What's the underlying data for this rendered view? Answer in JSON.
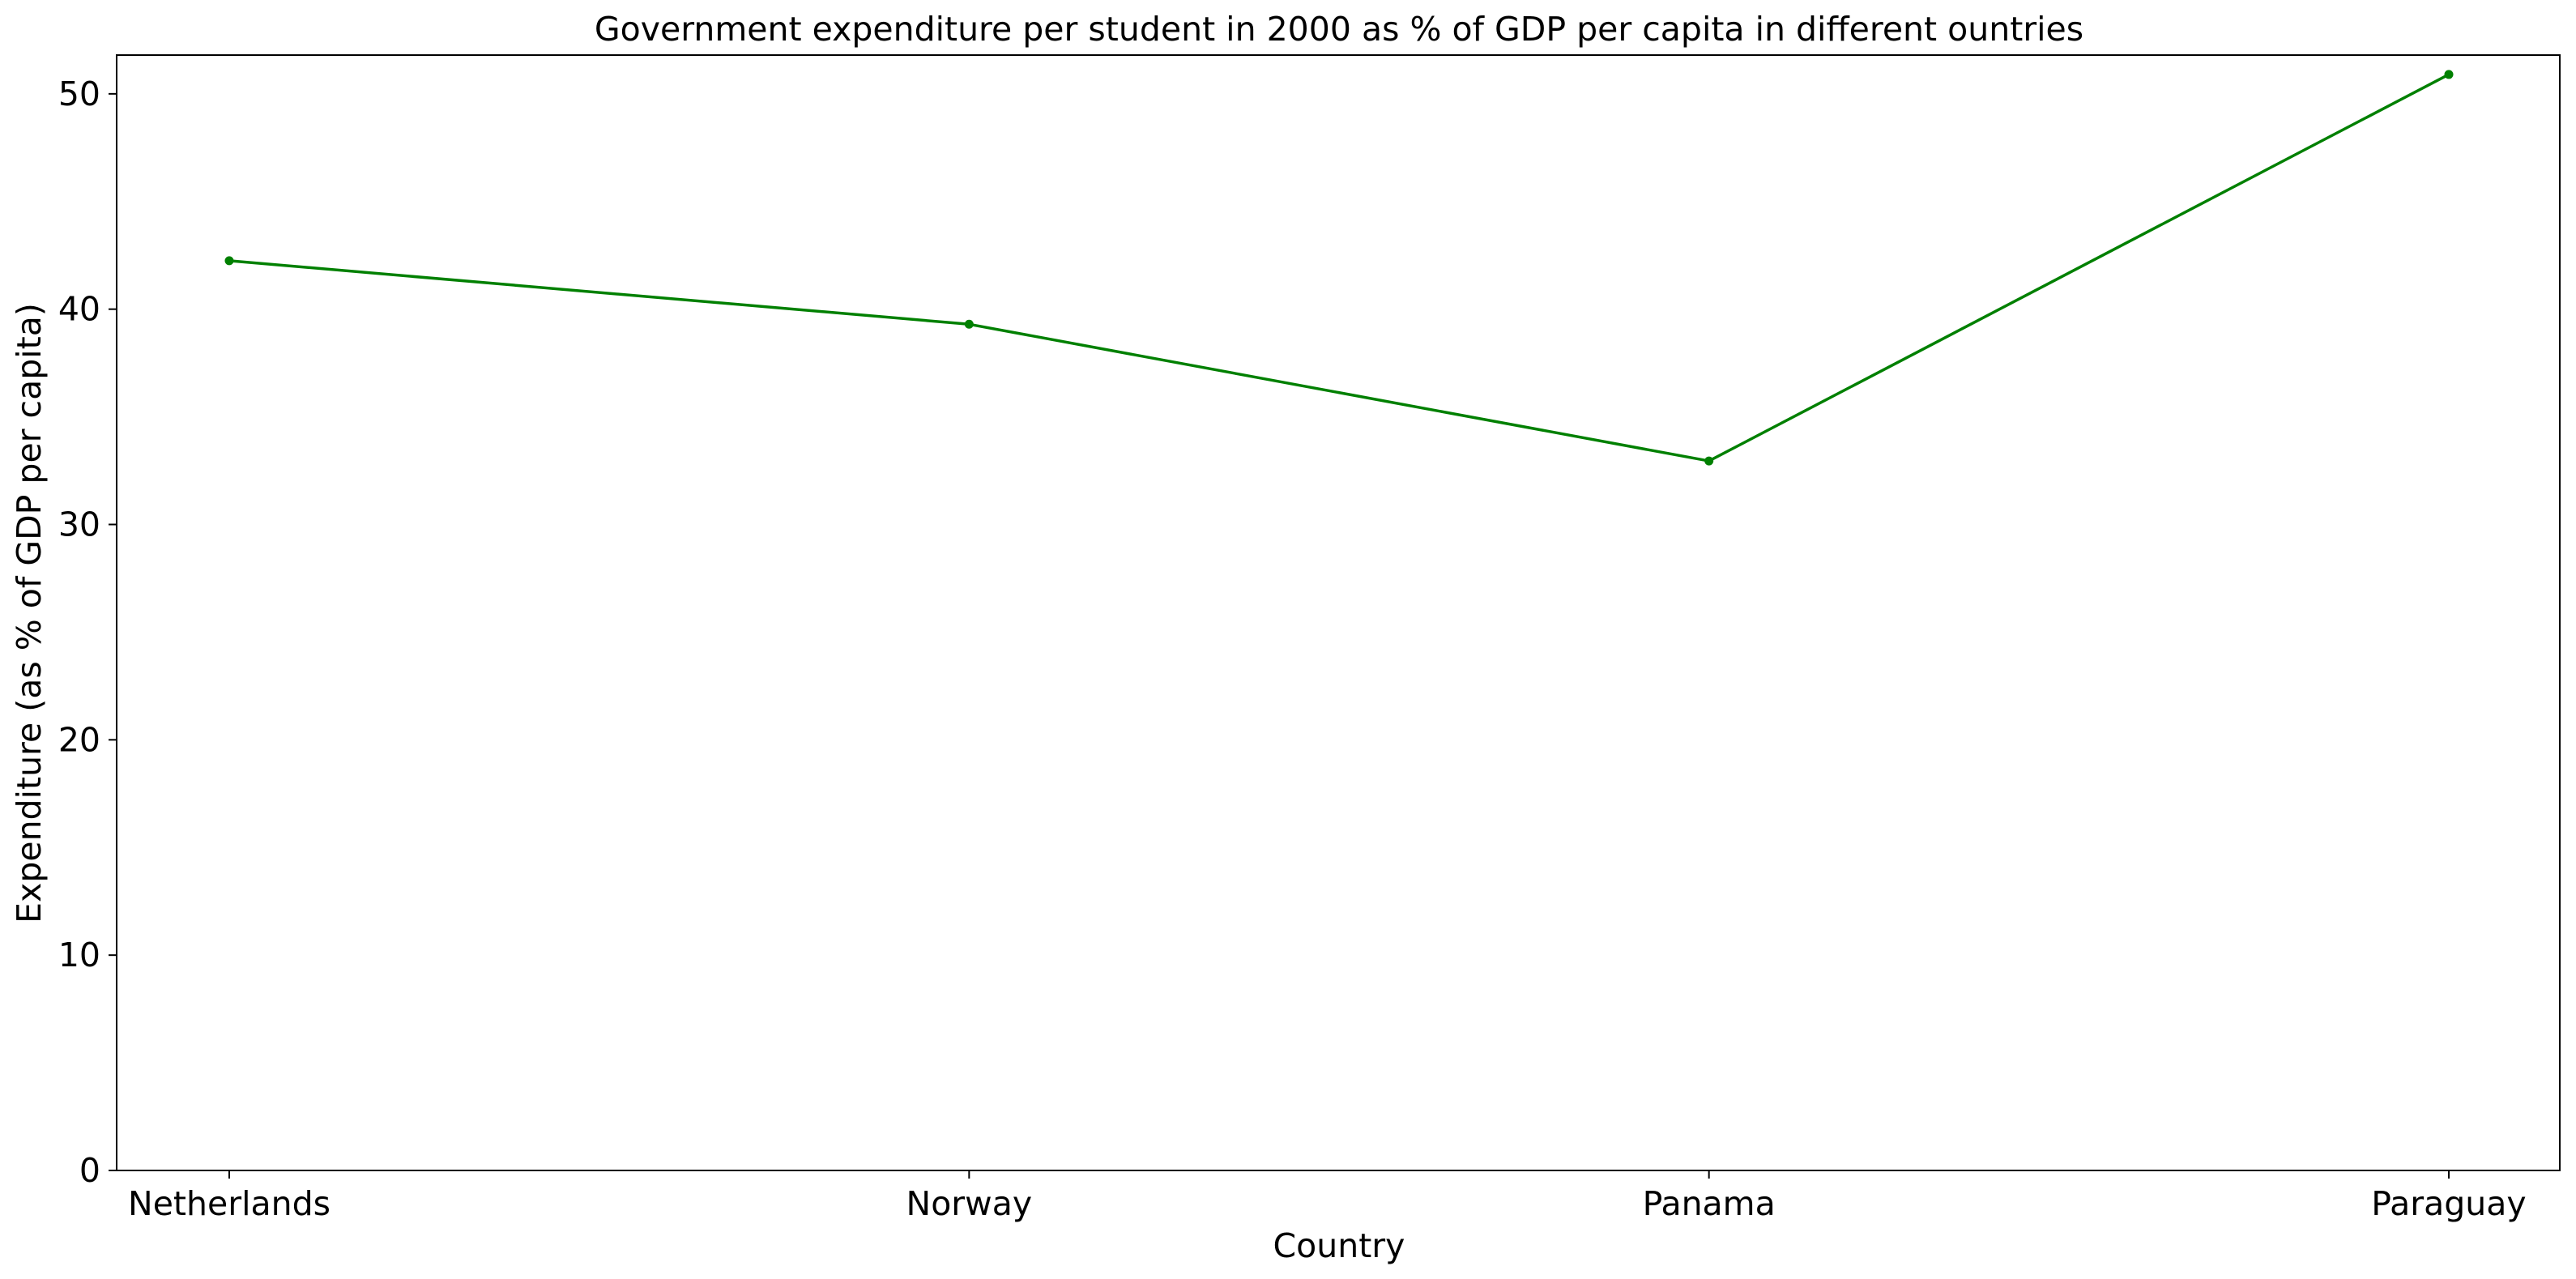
{
  "chart_data": {
    "type": "line",
    "title": "Government expenditure per student in 2000 as % of GDP per capita in different ountries",
    "xlabel": "Country",
    "ylabel": "Expenditure (as % of GDP per capita)",
    "categories": [
      "Netherlands",
      "Norway",
      "Panama",
      "Paraguay"
    ],
    "series": [
      {
        "values": [
          42.25,
          39.3,
          32.95,
          50.9
        ],
        "color": "#008000",
        "marker": "circle"
      }
    ],
    "ylim": [
      0,
      51.8
    ],
    "yticks": [
      0,
      10,
      20,
      30,
      40,
      50
    ],
    "grid": false,
    "legend": "none"
  }
}
